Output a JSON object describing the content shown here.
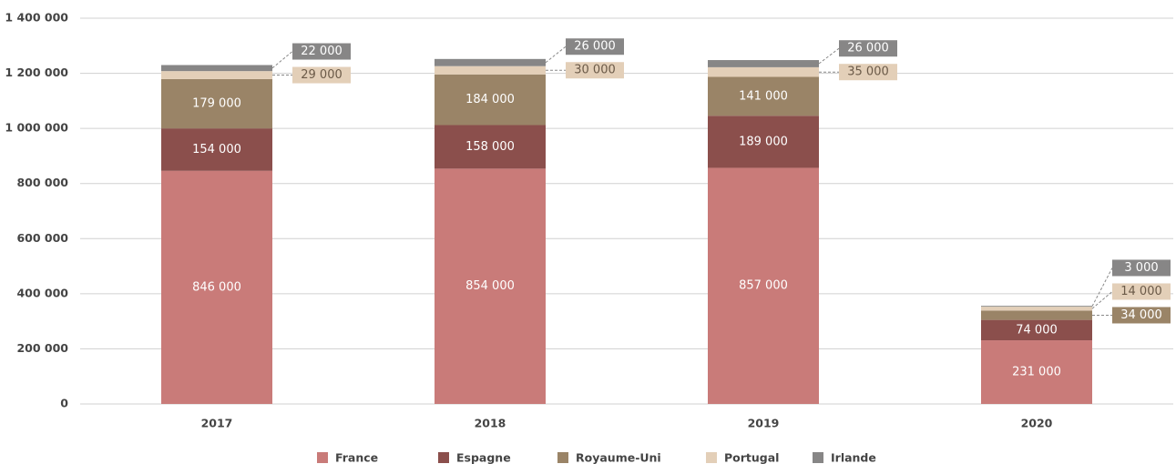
{
  "chart_data": {
    "type": "stacked_bar",
    "categories": [
      "2017",
      "2018",
      "2019",
      "2020"
    ],
    "series": [
      {
        "name": "France",
        "color": "#c97b79",
        "values": [
          846000,
          854000,
          857000,
          231000
        ],
        "value_labels": [
          "846 000",
          "854 000",
          "857 000",
          "231 000"
        ]
      },
      {
        "name": "Espagne",
        "color": "#8b4f4c",
        "values": [
          154000,
          158000,
          189000,
          74000
        ],
        "value_labels": [
          "154 000",
          "158 000",
          "189 000",
          "74 000"
        ]
      },
      {
        "name": "Royaume-Uni",
        "color": "#9a8467",
        "values": [
          179000,
          184000,
          141000,
          34000
        ],
        "value_labels": [
          "179 000",
          "184 000",
          "141 000",
          "34 000"
        ]
      },
      {
        "name": "Portugal",
        "color": "#e3cfb8",
        "values": [
          29000,
          30000,
          35000,
          14000
        ],
        "value_labels": [
          "29 000",
          "30 000",
          "35 000",
          "14 000"
        ]
      },
      {
        "name": "Irlande",
        "color": "#878686",
        "values": [
          22000,
          26000,
          26000,
          3000
        ],
        "value_labels": [
          "22 000",
          "26 000",
          "26 000",
          "3 000"
        ]
      }
    ],
    "ylim": [
      0,
      1400000
    ],
    "yticks": [
      0,
      {
        "value": 200000,
        "label": "200 000"
      },
      {
        "value": 400000,
        "label": "400 000"
      },
      {
        "value": 600000,
        "label": "600 000"
      },
      {
        "value": 800000,
        "label": "800 000"
      },
      {
        "value": 1000000,
        "label": "1 000 000"
      },
      {
        "value": 1200000,
        "label": "1 200 000"
      },
      {
        "value": 1400000,
        "label": "1 400 000"
      }
    ],
    "grid": true,
    "legend": "bottom"
  }
}
